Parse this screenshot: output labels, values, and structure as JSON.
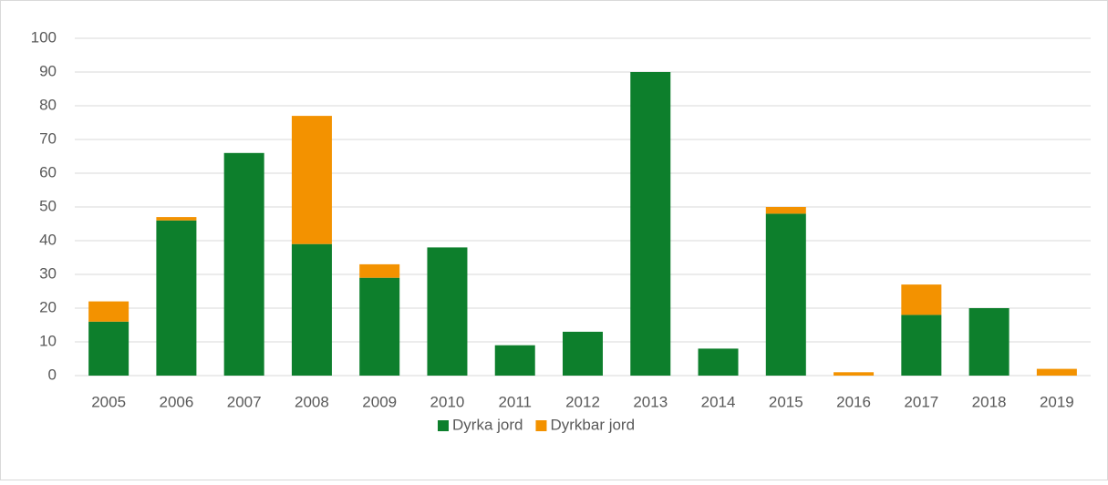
{
  "chart_data": {
    "type": "stacked_bar",
    "categories": [
      "2005",
      "2006",
      "2007",
      "2008",
      "2009",
      "2010",
      "2011",
      "2012",
      "2013",
      "2014",
      "2015",
      "2016",
      "2017",
      "2018",
      "2019"
    ],
    "series": [
      {
        "name": "Dyrka jord",
        "color": "#0d7f2c",
        "values": [
          16,
          46,
          66,
          39,
          29,
          38,
          9,
          13,
          90,
          8,
          48,
          0,
          18,
          20,
          0
        ]
      },
      {
        "name": "Dyrkbar jord",
        "color": "#f39200",
        "values": [
          6,
          1,
          0,
          38,
          4,
          0,
          0,
          0,
          0,
          0,
          2,
          1,
          9,
          0,
          2
        ]
      }
    ],
    "ylim": [
      0,
      100
    ],
    "yticks": [
      0,
      10,
      20,
      30,
      40,
      50,
      60,
      70,
      80,
      90,
      100
    ],
    "grid": true,
    "legend": "bottom"
  }
}
